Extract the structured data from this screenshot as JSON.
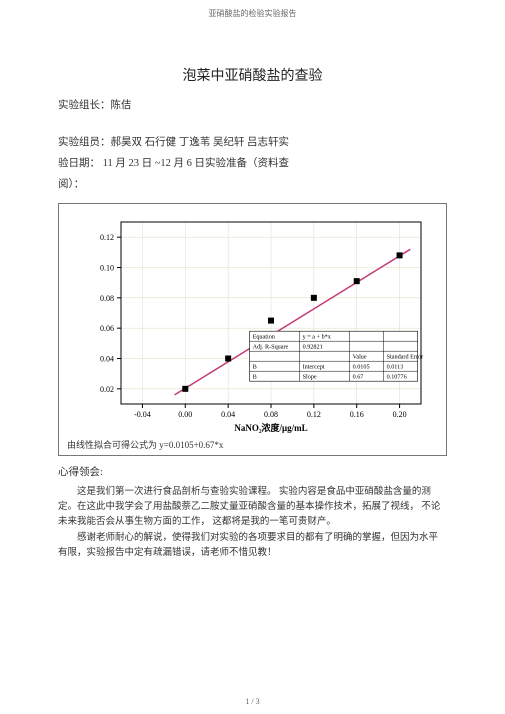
{
  "header": "亚硝酸盐的检验实验报告",
  "title": "泡菜中亚硝酸盐的查验",
  "line_leader": "实验组长：陈佶",
  "line_members": "实验组员：郝昊双  石行健  丁逸苇  吴纪轩  吕志轩实",
  "line_date": "验日期： 11 月 23 日 ~12 月 6 日实验准备（资料查",
  "line_date2": "阅）：",
  "chart": {
    "x_label": "NaNO₂浓度/μg/mL",
    "points": [
      {
        "x": 0.0,
        "y": 0.02
      },
      {
        "x": 0.04,
        "y": 0.04
      },
      {
        "x": 0.08,
        "y": 0.065
      },
      {
        "x": 0.12,
        "y": 0.08
      },
      {
        "x": 0.16,
        "y": 0.091
      },
      {
        "x": 0.2,
        "y": 0.108
      }
    ],
    "x_ticks": [
      -0.04,
      0.0,
      0.04,
      0.08,
      0.12,
      0.16,
      0.2
    ],
    "y_ticks": [
      0.02,
      0.04,
      0.06,
      0.08,
      0.1,
      0.12
    ],
    "xlim": [
      -0.06,
      0.22
    ],
    "ylim": [
      0.01,
      0.13
    ],
    "line_color": "#c43a78",
    "point_color": "#000000",
    "grid_color": "#e0d8c0",
    "border_color": "#000000",
    "inset": {
      "rows": [
        [
          "Equation",
          "y = a + b*x",
          "",
          ""
        ],
        [
          "Adj. R-Square",
          "0.92821",
          "",
          ""
        ],
        [
          "",
          "",
          "Value",
          "Standard Error"
        ],
        [
          "B",
          "Intercept",
          "0.0105",
          "0.0113"
        ],
        [
          "B",
          "Slope",
          "0.67",
          "0.10776"
        ]
      ]
    }
  },
  "caption": "由线性拟合可得公式为 y=0.0105+0.67*x",
  "section": "心得领会:",
  "para1": "这是我们第一次进行食品剖析与查验实验课程。 实验内容是食品中亚硝酸盐含量的测定。在这此中我学会了用盐酸萘乙二胺丈量亚硝酸含量的基本操作技术，拓展了视线， 不论未来我能否会从事生物方面的工作， 这都将是我的一笔可贵财产。",
  "para2": "感谢老师耐心的解说，使得我们对实验的各项要求目的都有了明确的掌握，但因为水平有限，实验报告中定有疏漏错误，请老师不惜见教！",
  "footer": "1 / 3"
}
